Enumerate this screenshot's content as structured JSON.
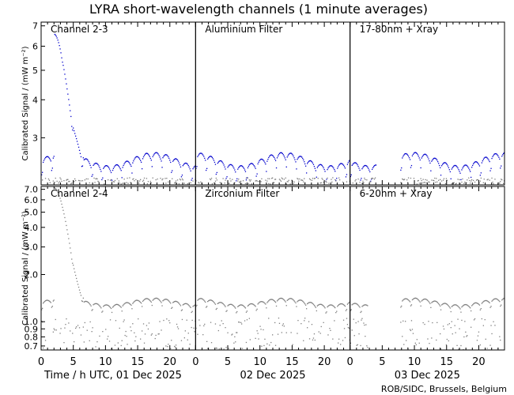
{
  "chart_data": {
    "type": "scatter",
    "title": "LYRA short-wavelength channels (1 minute averages)",
    "credit": "ROB/SIDC, Brussels, Belgium",
    "ylabel": "Calibrated Signal / (mW m⁻²)",
    "x_ticks": [
      "0",
      "5",
      "10",
      "15",
      "20"
    ],
    "x_range": [
      0,
      24
    ],
    "day_labels": [
      "Time / h UTC, 01 Dec 2025",
      "02 Dec 2025",
      "03 Dec 2025"
    ],
    "y_scale": "log",
    "colors": {
      "top": "#0000cc",
      "bottom": "#7f7f7f",
      "axes": "#000000"
    },
    "rows": [
      {
        "ylim": [
          2.1,
          7.2
        ],
        "y_ticks": [
          "3",
          "4",
          "5",
          "6",
          "7"
        ],
        "series": [
          {
            "name": "Channel 2-3",
            "baseline": 2.42,
            "event": {
              "peak": 6.6,
              "start": 2.0,
              "peak_time": 2.0,
              "decay_end": 6.5
            },
            "gap": null
          },
          {
            "name": "Aluminium Filter",
            "baseline": 2.42,
            "event": null,
            "gap": null
          },
          {
            "name": "17-80nm + Xray",
            "baseline": 2.42,
            "event": null,
            "gap": [
              4.0,
              7.7
            ]
          }
        ]
      },
      {
        "ylim": [
          0.66,
          7.3
        ],
        "y_ticks": [
          "0.7",
          "0.8",
          "0.9",
          "1.0",
          "2.0",
          "3.0",
          "4.0",
          "5.0",
          "6.0",
          "7.0"
        ],
        "series": [
          {
            "name": "Channel 2-4",
            "baseline": 1.28,
            "event": {
              "peak": 7.2,
              "start": 2.0,
              "peak_time": 2.0,
              "decay_end": 6.5
            },
            "gap": null
          },
          {
            "name": "Zirconium Filter",
            "baseline": 1.28,
            "event": null,
            "gap": null
          },
          {
            "name": "6-20nm + Xray",
            "baseline": 1.28,
            "event": null,
            "gap": [
              2.7,
              7.7
            ]
          }
        ]
      }
    ]
  }
}
